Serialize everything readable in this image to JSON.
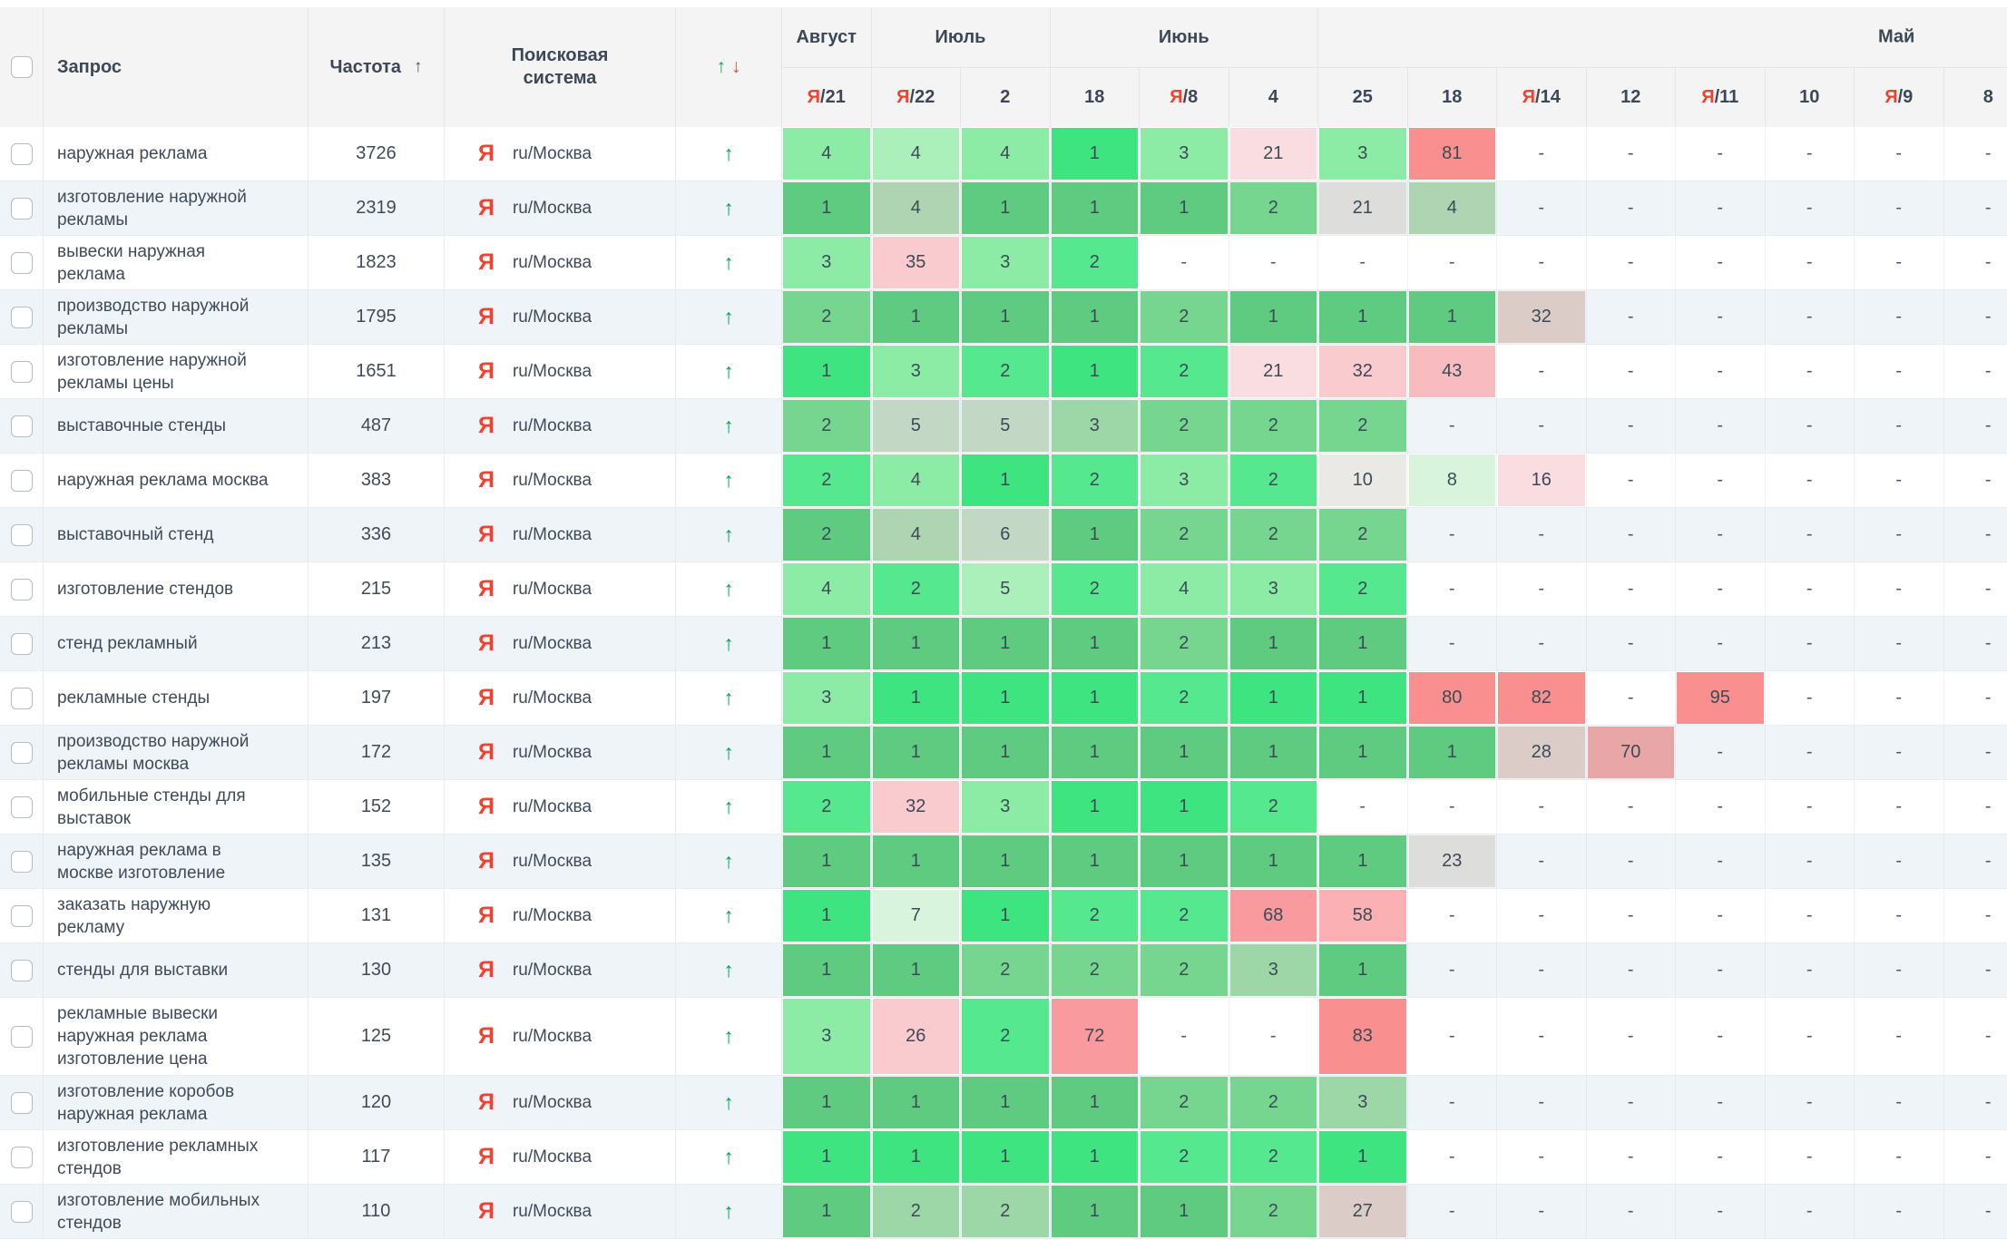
{
  "header": {
    "columns": {
      "query": "Запрос",
      "frequency": "Частота",
      "engine": "Поисковая система"
    },
    "sort_icon": "↑",
    "dynamics_icons": {
      "up": "↑",
      "down": "↓"
    },
    "months": [
      {
        "label": "Август",
        "span": 1
      },
      {
        "label": "Июль",
        "span": 2
      },
      {
        "label": "Июнь",
        "span": 3
      },
      {
        "label": "Май",
        "span": 8
      }
    ],
    "dates": [
      {
        "ya": true,
        "d": "21"
      },
      {
        "ya": true,
        "d": "22"
      },
      {
        "ya": false,
        "d": "2"
      },
      {
        "ya": false,
        "d": "18"
      },
      {
        "ya": true,
        "d": "8"
      },
      {
        "ya": false,
        "d": "4"
      },
      {
        "ya": false,
        "d": "25"
      },
      {
        "ya": false,
        "d": "18"
      },
      {
        "ya": true,
        "d": "14"
      },
      {
        "ya": false,
        "d": "12"
      },
      {
        "ya": true,
        "d": "11"
      },
      {
        "ya": false,
        "d": "10"
      },
      {
        "ya": true,
        "d": "9"
      },
      {
        "ya": false,
        "d": "8"
      }
    ],
    "ya_prefix": "Я",
    "ya_separator": "/"
  },
  "engine": {
    "icon": "Я",
    "region": "ru/Москва"
  },
  "trend_up_icon": "↑",
  "no_data": "-",
  "palette": {
    "g1": "#3de47f",
    "g2": "#55e88e",
    "g3": "#5ecb81",
    "g4": "#76d690",
    "g5": "#8ceca6",
    "g6": "#abefba",
    "g7": "#d9f4dc",
    "gg1": "#9dd7a8",
    "gg2": "#aed4b2",
    "gg3": "#c2d8c4",
    "gy1": "#dddddb",
    "gy2": "#ebe9e6",
    "pg": "#dbccc8",
    "p1": "#f9dde0",
    "p2": "#f9cbcf",
    "p3": "#f8bcc0",
    "r1": "#f9908f",
    "r2": "#f99b9e",
    "r3": "#fbb0b4",
    "r4": "#e9a6a6"
  },
  "rows": [
    {
      "query": "наружная реклама",
      "frequency": "3726",
      "cells": [
        [
          "4",
          "g5"
        ],
        [
          "4",
          "g6"
        ],
        [
          "4",
          "g5"
        ],
        [
          "1",
          "g1"
        ],
        [
          "3",
          "g5"
        ],
        [
          "21",
          "p1"
        ],
        [
          "3",
          "g5"
        ],
        [
          "81",
          "r1"
        ],
        [
          "-"
        ],
        [
          "-"
        ],
        [
          "-"
        ],
        [
          "-"
        ],
        [
          "-"
        ],
        [
          "-"
        ]
      ]
    },
    {
      "query": "изготовление наружной рекламы",
      "frequency": "2319",
      "cells": [
        [
          "1",
          "g3"
        ],
        [
          "4",
          "gg2"
        ],
        [
          "1",
          "g3"
        ],
        [
          "1",
          "g3"
        ],
        [
          "1",
          "g3"
        ],
        [
          "2",
          "g4"
        ],
        [
          "21",
          "gy1"
        ],
        [
          "4",
          "gg2"
        ],
        [
          "-"
        ],
        [
          "-"
        ],
        [
          "-"
        ],
        [
          "-"
        ],
        [
          "-"
        ],
        [
          "-"
        ]
      ]
    },
    {
      "query": "вывески наружная реклама",
      "frequency": "1823",
      "cells": [
        [
          "3",
          "g5"
        ],
        [
          "35",
          "p2"
        ],
        [
          "3",
          "g5"
        ],
        [
          "2",
          "g2"
        ],
        [
          "-"
        ],
        [
          "-"
        ],
        [
          "-"
        ],
        [
          "-"
        ],
        [
          "-"
        ],
        [
          "-"
        ],
        [
          "-"
        ],
        [
          "-"
        ],
        [
          "-"
        ],
        [
          "-"
        ]
      ]
    },
    {
      "query": "производство наружной рекламы",
      "frequency": "1795",
      "cells": [
        [
          "2",
          "g4"
        ],
        [
          "1",
          "g3"
        ],
        [
          "1",
          "g3"
        ],
        [
          "1",
          "g3"
        ],
        [
          "2",
          "g4"
        ],
        [
          "1",
          "g3"
        ],
        [
          "1",
          "g3"
        ],
        [
          "1",
          "g3"
        ],
        [
          "32",
          "pg"
        ],
        [
          "-"
        ],
        [
          "-"
        ],
        [
          "-"
        ],
        [
          "-"
        ],
        [
          "-"
        ]
      ]
    },
    {
      "query": "изготовление наружной рекламы цены",
      "frequency": "1651",
      "cells": [
        [
          "1",
          "g1"
        ],
        [
          "3",
          "g5"
        ],
        [
          "2",
          "g2"
        ],
        [
          "1",
          "g1"
        ],
        [
          "2",
          "g2"
        ],
        [
          "21",
          "p1"
        ],
        [
          "32",
          "p2"
        ],
        [
          "43",
          "p3"
        ],
        [
          "-"
        ],
        [
          "-"
        ],
        [
          "-"
        ],
        [
          "-"
        ],
        [
          "-"
        ],
        [
          "-"
        ]
      ]
    },
    {
      "query": "выставочные стенды",
      "frequency": "487",
      "cells": [
        [
          "2",
          "g4"
        ],
        [
          "5",
          "gg3"
        ],
        [
          "5",
          "gg3"
        ],
        [
          "3",
          "gg1"
        ],
        [
          "2",
          "g4"
        ],
        [
          "2",
          "g4"
        ],
        [
          "2",
          "g4"
        ],
        [
          "-"
        ],
        [
          "-"
        ],
        [
          "-"
        ],
        [
          "-"
        ],
        [
          "-"
        ],
        [
          "-"
        ],
        [
          "-"
        ]
      ]
    },
    {
      "query": "наружная реклама москва",
      "frequency": "383",
      "cells": [
        [
          "2",
          "g2"
        ],
        [
          "4",
          "g5"
        ],
        [
          "1",
          "g1"
        ],
        [
          "2",
          "g2"
        ],
        [
          "3",
          "g5"
        ],
        [
          "2",
          "g2"
        ],
        [
          "10",
          "gy2"
        ],
        [
          "8",
          "g7"
        ],
        [
          "16",
          "p1"
        ],
        [
          "-"
        ],
        [
          "-"
        ],
        [
          "-"
        ],
        [
          "-"
        ],
        [
          "-"
        ]
      ]
    },
    {
      "query": "выставочный стенд",
      "frequency": "336",
      "cells": [
        [
          "2",
          "g3"
        ],
        [
          "4",
          "gg2"
        ],
        [
          "6",
          "gg3"
        ],
        [
          "1",
          "g3"
        ],
        [
          "2",
          "g4"
        ],
        [
          "2",
          "g4"
        ],
        [
          "2",
          "g4"
        ],
        [
          "-"
        ],
        [
          "-"
        ],
        [
          "-"
        ],
        [
          "-"
        ],
        [
          "-"
        ],
        [
          "-"
        ],
        [
          "-"
        ]
      ]
    },
    {
      "query": "изготовление стендов",
      "frequency": "215",
      "cells": [
        [
          "4",
          "g5"
        ],
        [
          "2",
          "g2"
        ],
        [
          "5",
          "g6"
        ],
        [
          "2",
          "g2"
        ],
        [
          "4",
          "g5"
        ],
        [
          "3",
          "g5"
        ],
        [
          "2",
          "g2"
        ],
        [
          "-"
        ],
        [
          "-"
        ],
        [
          "-"
        ],
        [
          "-"
        ],
        [
          "-"
        ],
        [
          "-"
        ],
        [
          "-"
        ]
      ]
    },
    {
      "query": "стенд рекламный",
      "frequency": "213",
      "cells": [
        [
          "1",
          "g3"
        ],
        [
          "1",
          "g3"
        ],
        [
          "1",
          "g3"
        ],
        [
          "1",
          "g3"
        ],
        [
          "2",
          "g4"
        ],
        [
          "1",
          "g3"
        ],
        [
          "1",
          "g3"
        ],
        [
          "-"
        ],
        [
          "-"
        ],
        [
          "-"
        ],
        [
          "-"
        ],
        [
          "-"
        ],
        [
          "-"
        ],
        [
          "-"
        ]
      ]
    },
    {
      "query": "рекламные стенды",
      "frequency": "197",
      "cells": [
        [
          "3",
          "g5"
        ],
        [
          "1",
          "g1"
        ],
        [
          "1",
          "g1"
        ],
        [
          "1",
          "g1"
        ],
        [
          "2",
          "g2"
        ],
        [
          "1",
          "g1"
        ],
        [
          "1",
          "g1"
        ],
        [
          "80",
          "r1"
        ],
        [
          "82",
          "r1"
        ],
        [
          "-"
        ],
        [
          "95",
          "r1"
        ],
        [
          "-"
        ],
        [
          "-"
        ],
        [
          "-"
        ]
      ]
    },
    {
      "query": "производство наружной рекламы москва",
      "frequency": "172",
      "cells": [
        [
          "1",
          "g3"
        ],
        [
          "1",
          "g3"
        ],
        [
          "1",
          "g3"
        ],
        [
          "1",
          "g3"
        ],
        [
          "1",
          "g3"
        ],
        [
          "1",
          "g3"
        ],
        [
          "1",
          "g3"
        ],
        [
          "1",
          "g3"
        ],
        [
          "28",
          "pg"
        ],
        [
          "70",
          "r4"
        ],
        [
          "-"
        ],
        [
          "-"
        ],
        [
          "-"
        ],
        [
          "-"
        ]
      ]
    },
    {
      "query": "мобильные стенды для выставок",
      "frequency": "152",
      "cells": [
        [
          "2",
          "g2"
        ],
        [
          "32",
          "p2"
        ],
        [
          "3",
          "g5"
        ],
        [
          "1",
          "g1"
        ],
        [
          "1",
          "g1"
        ],
        [
          "2",
          "g2"
        ],
        [
          "-"
        ],
        [
          "-"
        ],
        [
          "-"
        ],
        [
          "-"
        ],
        [
          "-"
        ],
        [
          "-"
        ],
        [
          "-"
        ],
        [
          "-"
        ]
      ]
    },
    {
      "query": "наружная реклама в москве изготовление",
      "frequency": "135",
      "cells": [
        [
          "1",
          "g3"
        ],
        [
          "1",
          "g3"
        ],
        [
          "1",
          "g3"
        ],
        [
          "1",
          "g3"
        ],
        [
          "1",
          "g3"
        ],
        [
          "1",
          "g3"
        ],
        [
          "1",
          "g3"
        ],
        [
          "23",
          "gy1"
        ],
        [
          "-"
        ],
        [
          "-"
        ],
        [
          "-"
        ],
        [
          "-"
        ],
        [
          "-"
        ],
        [
          "-"
        ]
      ]
    },
    {
      "query": "заказать наружную рекламу",
      "frequency": "131",
      "cells": [
        [
          "1",
          "g1"
        ],
        [
          "7",
          "g7"
        ],
        [
          "1",
          "g1"
        ],
        [
          "2",
          "g2"
        ],
        [
          "2",
          "g2"
        ],
        [
          "68",
          "r2"
        ],
        [
          "58",
          "r3"
        ],
        [
          "-"
        ],
        [
          "-"
        ],
        [
          "-"
        ],
        [
          "-"
        ],
        [
          "-"
        ],
        [
          "-"
        ],
        [
          "-"
        ]
      ]
    },
    {
      "query": "стенды для выставки",
      "frequency": "130",
      "cells": [
        [
          "1",
          "g3"
        ],
        [
          "1",
          "g3"
        ],
        [
          "2",
          "g4"
        ],
        [
          "2",
          "g4"
        ],
        [
          "2",
          "g4"
        ],
        [
          "3",
          "gg1"
        ],
        [
          "1",
          "g3"
        ],
        [
          "-"
        ],
        [
          "-"
        ],
        [
          "-"
        ],
        [
          "-"
        ],
        [
          "-"
        ],
        [
          "-"
        ],
        [
          "-"
        ]
      ]
    },
    {
      "query": "рекламные вывески наружная реклама изготовление цена",
      "frequency": "125",
      "tall": true,
      "cells": [
        [
          "3",
          "g5"
        ],
        [
          "26",
          "p2"
        ],
        [
          "2",
          "g2"
        ],
        [
          "72",
          "r2"
        ],
        [
          "-"
        ],
        [
          "-"
        ],
        [
          "83",
          "r1"
        ],
        [
          "-"
        ],
        [
          "-"
        ],
        [
          "-"
        ],
        [
          "-"
        ],
        [
          "-"
        ],
        [
          "-"
        ],
        [
          "-"
        ]
      ]
    },
    {
      "query": "изготовление коробов наружная реклама",
      "frequency": "120",
      "cells": [
        [
          "1",
          "g3"
        ],
        [
          "1",
          "g3"
        ],
        [
          "1",
          "g3"
        ],
        [
          "1",
          "g3"
        ],
        [
          "2",
          "g4"
        ],
        [
          "2",
          "g4"
        ],
        [
          "3",
          "gg1"
        ],
        [
          "-"
        ],
        [
          "-"
        ],
        [
          "-"
        ],
        [
          "-"
        ],
        [
          "-"
        ],
        [
          "-"
        ],
        [
          "-"
        ]
      ]
    },
    {
      "query": "изготовление рекламных стендов",
      "frequency": "117",
      "cells": [
        [
          "1",
          "g1"
        ],
        [
          "1",
          "g1"
        ],
        [
          "1",
          "g1"
        ],
        [
          "1",
          "g1"
        ],
        [
          "2",
          "g2"
        ],
        [
          "2",
          "g2"
        ],
        [
          "1",
          "g1"
        ],
        [
          "-"
        ],
        [
          "-"
        ],
        [
          "-"
        ],
        [
          "-"
        ],
        [
          "-"
        ],
        [
          "-"
        ],
        [
          "-"
        ]
      ]
    },
    {
      "query": "изготовление мобильных стендов",
      "frequency": "110",
      "cells": [
        [
          "1",
          "g3"
        ],
        [
          "2",
          "gg1"
        ],
        [
          "2",
          "gg1"
        ],
        [
          "1",
          "g3"
        ],
        [
          "1",
          "g3"
        ],
        [
          "2",
          "g4"
        ],
        [
          "27",
          "pg"
        ],
        [
          "-"
        ],
        [
          "-"
        ],
        [
          "-"
        ],
        [
          "-"
        ],
        [
          "-"
        ],
        [
          "-"
        ],
        [
          "-"
        ]
      ]
    }
  ]
}
